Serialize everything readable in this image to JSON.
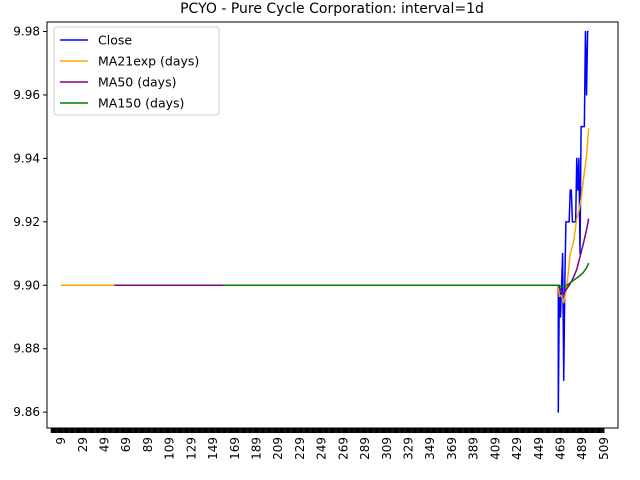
{
  "chart_data": {
    "type": "line",
    "title": "PCYO - Pure Cycle Corporation: interval=1d",
    "xlabel": "",
    "ylabel": "",
    "xlim": [
      -4,
      522
    ],
    "ylim": [
      9.855,
      9.983
    ],
    "grid": false,
    "legend_position": "top-left",
    "x_ticks": [
      9,
      29,
      49,
      69,
      89,
      109,
      129,
      149,
      169,
      189,
      209,
      229,
      249,
      269,
      289,
      309,
      329,
      349,
      369,
      389,
      409,
      429,
      449,
      469,
      489,
      509
    ],
    "y_ticks": [
      "9.86",
      "9.88",
      "9.90",
      "9.92",
      "9.94",
      "9.96",
      "9.98"
    ],
    "series": [
      {
        "name": "Close",
        "color": "#0000ff",
        "points": [
          [
            9,
            9.9
          ],
          [
            467,
            9.9
          ],
          [
            467,
            9.86
          ],
          [
            468,
            9.9
          ],
          [
            469,
            9.89
          ],
          [
            470,
            9.9
          ],
          [
            471,
            9.91
          ],
          [
            472,
            9.87
          ],
          [
            473,
            9.9
          ],
          [
            474,
            9.92
          ],
          [
            477,
            9.92
          ],
          [
            478,
            9.93
          ],
          [
            479,
            9.93
          ],
          [
            480,
            9.92
          ],
          [
            483,
            9.92
          ],
          [
            484,
            9.94
          ],
          [
            485,
            9.93
          ],
          [
            486,
            9.94
          ],
          [
            487,
            9.91
          ],
          [
            488,
            9.95
          ],
          [
            491,
            9.95
          ],
          [
            492,
            9.98
          ],
          [
            493,
            9.96
          ],
          [
            494,
            9.98
          ],
          [
            495,
            9.98
          ]
        ]
      },
      {
        "name": "MA21exp (days)",
        "color": "#ffa500",
        "points": [
          [
            9,
            9.9
          ],
          [
            467,
            9.9
          ],
          [
            468,
            9.8965
          ],
          [
            470,
            9.8968
          ],
          [
            472,
            9.8945
          ],
          [
            474,
            9.898
          ],
          [
            476,
            9.9032
          ],
          [
            478,
            9.91
          ],
          [
            481,
            9.9135
          ],
          [
            484,
            9.921
          ],
          [
            486,
            9.9235
          ],
          [
            488,
            9.927
          ],
          [
            490,
            9.933
          ],
          [
            492,
            9.938
          ],
          [
            493,
            9.941
          ],
          [
            494,
            9.945
          ],
          [
            495,
            9.9495
          ]
        ]
      },
      {
        "name": "MA50 (days)",
        "color": "#800080",
        "points": [
          [
            58,
            9.9
          ],
          [
            467,
            9.9
          ],
          [
            469,
            9.8985
          ],
          [
            472,
            9.8975
          ],
          [
            475,
            9.899
          ],
          [
            478,
            9.9005
          ],
          [
            481,
            9.9025
          ],
          [
            484,
            9.905
          ],
          [
            487,
            9.909
          ],
          [
            490,
            9.913
          ],
          [
            493,
            9.9175
          ],
          [
            495,
            9.921
          ]
        ]
      },
      {
        "name": "MA150 (days)",
        "color": "#008000",
        "points": [
          [
            158,
            9.9
          ],
          [
            467,
            9.9
          ],
          [
            470,
            9.8995
          ],
          [
            474,
            9.8998
          ],
          [
            478,
            9.9008
          ],
          [
            482,
            9.9018
          ],
          [
            486,
            9.9028
          ],
          [
            490,
            9.904
          ],
          [
            493,
            9.9055
          ],
          [
            495,
            9.907
          ]
        ]
      }
    ]
  }
}
